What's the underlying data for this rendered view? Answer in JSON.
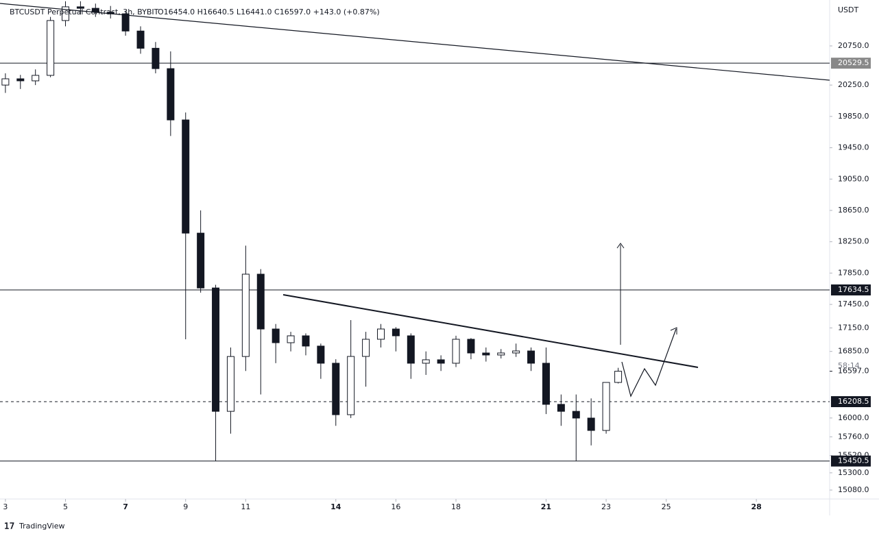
{
  "chart_data": {
    "type": "candlestick",
    "title": "BTCUSDT Perpetual Contract, 3h, BYBIT",
    "ohlc_header": "O16454.0 H16640.5 L16441.0 C16597.0 +143.0 (+0.87%)",
    "currency": "USDT",
    "x": [
      3,
      3.5,
      4,
      4.5,
      5,
      5.5,
      6,
      6.5,
      7,
      7.5,
      8,
      8.5,
      9,
      9.5,
      10,
      10.5,
      11,
      11.5,
      12,
      12.5,
      13,
      13.5,
      14,
      14.5,
      15,
      15.5,
      16,
      16.5,
      17,
      17.5,
      18,
      18.5,
      19,
      19.5,
      20,
      20.5,
      21,
      21.5,
      22,
      22.5,
      23,
      23.4
    ],
    "open": [
      20250,
      20330,
      20304,
      20374,
      21074,
      21249,
      21230,
      21180,
      21160,
      20940,
      20720,
      20460,
      19805,
      18360,
      17660,
      16085,
      16785,
      17836,
      17136,
      16961,
      17049,
      16918,
      16699,
      16042,
      16786,
      17005,
      17136,
      17049,
      16699,
      16743,
      16699,
      17005,
      16830,
      16804,
      16830,
      16856,
      16699,
      16174,
      16085,
      15999,
      15841,
      16454
    ],
    "high": [
      20400,
      20380,
      20450,
      21120,
      21320,
      21320,
      21290,
      21260,
      21200,
      21000,
      20800,
      20680,
      19900,
      18650,
      17700,
      16900,
      18200,
      17900,
      17200,
      17100,
      17080,
      16950,
      16750,
      17250,
      17100,
      17200,
      17160,
      17080,
      16850,
      16800,
      17050,
      17020,
      16900,
      16880,
      16950,
      16900,
      16900,
      16300,
      16300,
      16250,
      16450,
      16640.5
    ],
    "low": [
      20150,
      20200,
      20250,
      20350,
      21000,
      21150,
      21120,
      21100,
      20880,
      20650,
      20400,
      19600,
      17005,
      17600,
      15450,
      15800,
      16600,
      16300,
      16700,
      16850,
      16800,
      16500,
      15900,
      16000,
      16400,
      16900,
      16850,
      16500,
      16550,
      16600,
      16650,
      16750,
      16720,
      16760,
      16780,
      16600,
      16050,
      15900,
      15450,
      15650,
      15800,
      16441
    ],
    "close": [
      20330,
      20304,
      20374,
      21074,
      21249,
      21230,
      21180,
      21160,
      20940,
      20720,
      20460,
      19805,
      18360,
      17660,
      16085,
      16785,
      17836,
      17136,
      16961,
      17049,
      16918,
      16699,
      16042,
      16786,
      17005,
      17136,
      17049,
      16699,
      16743,
      16699,
      17005,
      16830,
      16804,
      16830,
      16856,
      16699,
      16174,
      16085,
      15999,
      15841,
      16454,
      16597
    ],
    "up_color": "#ffffff",
    "down_color": "#131722",
    "xlim": [
      2.82,
      30.44
    ],
    "xticks": [
      3,
      5,
      7,
      9,
      11,
      14,
      16,
      18,
      21,
      23,
      25,
      28
    ],
    "xtick_bold": [
      false,
      false,
      true,
      false,
      false,
      true,
      false,
      false,
      true,
      false,
      false,
      true
    ],
    "ylim": [
      14966,
      21336
    ],
    "yticks": [
      {
        "value": 20750,
        "label": "20750.0"
      },
      {
        "value": 20250,
        "label": "20250.0"
      },
      {
        "value": 19850,
        "label": "19850.0"
      },
      {
        "value": 19450,
        "label": "19450.0"
      },
      {
        "value": 19050,
        "label": "19050.0"
      },
      {
        "value": 18650,
        "label": "18650.0"
      },
      {
        "value": 18250,
        "label": "18250.0"
      },
      {
        "value": 17850,
        "label": "17850.0"
      },
      {
        "value": 17450,
        "label": "17450.0"
      },
      {
        "value": 17150,
        "label": "17150.0"
      },
      {
        "value": 16850,
        "label": "16850.0"
      },
      {
        "value": 16000,
        "label": "16000.0"
      },
      {
        "value": 15760,
        "label": "15760.0"
      },
      {
        "value": 15520,
        "label": "15520.0"
      },
      {
        "value": 15300,
        "label": "15300.0"
      },
      {
        "value": 15080,
        "label": "15080.0"
      }
    ],
    "levels": [
      {
        "value": 20529.5,
        "dashed": false,
        "label_bg": "#888888"
      },
      {
        "value": 17634.5,
        "dashed": false,
        "label_bg": "#131722"
      },
      {
        "value": 16208.5,
        "dashed": true,
        "label_bg": "#131722"
      },
      {
        "value": 15450.5,
        "dashed": false,
        "label_bg": "#131722"
      }
    ],
    "last_price": {
      "value": 16597,
      "label": "16597.0"
    },
    "countdown": "58:14",
    "brand": "TradingView"
  }
}
